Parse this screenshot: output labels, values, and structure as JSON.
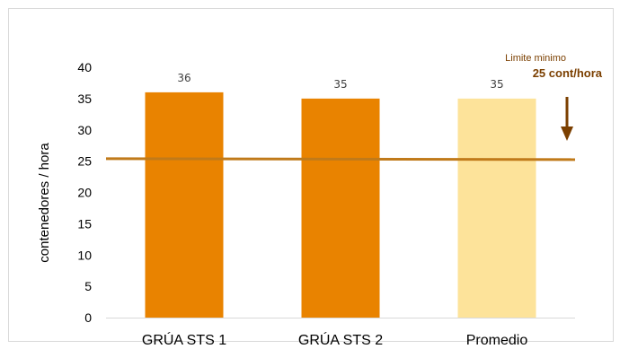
{
  "chart_data": {
    "type": "bar",
    "categories": [
      "GRÚA STS 1",
      "GRÚA STS 2",
      "Promedio"
    ],
    "values": [
      36,
      35,
      35
    ],
    "data_labels": [
      "36",
      "35",
      "35"
    ],
    "bar_colors": [
      "#e98300",
      "#e98300",
      "#fde39a"
    ],
    "ylabel": "contenedores / hora",
    "ylim": [
      0,
      40
    ],
    "yticks": [
      0,
      5,
      10,
      15,
      20,
      25,
      30,
      35,
      40
    ],
    "grid": false,
    "reference_line": {
      "value": 25.4,
      "color": "#c07a1a",
      "label_line1": "Limite minimo",
      "label_line2": "25 cont/hora",
      "label_color": "#7b3f00"
    }
  }
}
